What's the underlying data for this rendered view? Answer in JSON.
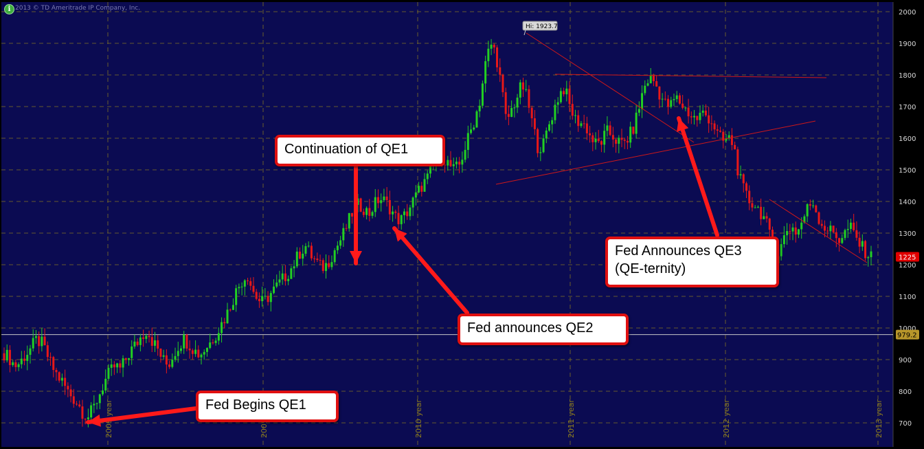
{
  "copyright": "2013 © TD Ameritrade IP Company, Inc.",
  "info_icon": "info-icon",
  "colors": {
    "background": "#0b0b52",
    "grid": "#8a7a20",
    "axis_panel": "#000000",
    "up_candle": "#22d022",
    "down_candle": "#e81818",
    "trendline": "#d01818",
    "callout_border": "#e01010",
    "last_price_badge": "#e00000",
    "level_badge": "#b8962a"
  },
  "chart_data": {
    "type": "candlestick",
    "title": "",
    "ylim": [
      660,
      2020
    ],
    "y_ticks": [
      700,
      800,
      900,
      1000,
      1100,
      1200,
      1300,
      1400,
      1500,
      1600,
      1700,
      1800,
      1900,
      2000
    ],
    "x_year_labels": [
      "2009 year",
      "2009",
      "2010 year",
      "2011 year",
      "2012 year",
      "2013 year"
    ],
    "high_label": "Hi: 1923.7",
    "high_value": 1923.7,
    "last_price": "1225",
    "horizontal_level": 979.2,
    "horizontal_level_label": "979.2",
    "approx_closes": [
      920,
      905,
      880,
      890,
      915,
      935,
      960,
      955,
      920,
      880,
      850,
      830,
      800,
      780,
      760,
      730,
      720,
      750,
      790,
      830,
      860,
      880,
      870,
      900,
      930,
      950,
      975,
      995,
      960,
      935,
      900,
      880,
      915,
      945,
      965,
      950,
      930,
      915,
      935,
      955,
      980,
      1010,
      1040,
      1080,
      1120,
      1150,
      1170,
      1120,
      1090,
      1080,
      1100,
      1120,
      1140,
      1160,
      1180,
      1210,
      1240,
      1260,
      1230,
      1210,
      1190,
      1200,
      1230,
      1260,
      1290,
      1330,
      1370,
      1390,
      1380,
      1360,
      1390,
      1410,
      1400,
      1380,
      1350,
      1340,
      1360,
      1390,
      1420,
      1450,
      1470,
      1510,
      1530,
      1540,
      1520,
      1500,
      1510,
      1560,
      1610,
      1660,
      1720,
      1830,
      1900,
      1870,
      1770,
      1650,
      1690,
      1730,
      1770,
      1720,
      1640,
      1570,
      1580,
      1640,
      1690,
      1740,
      1760,
      1700,
      1660,
      1650,
      1640,
      1600,
      1580,
      1590,
      1620,
      1610,
      1590,
      1580,
      1600,
      1630,
      1690,
      1760,
      1790,
      1780,
      1740,
      1710,
      1700,
      1730,
      1710,
      1690,
      1670,
      1660,
      1680,
      1670,
      1650,
      1610,
      1590,
      1600,
      1580,
      1480,
      1430,
      1400,
      1390,
      1370,
      1340,
      1280,
      1220,
      1260,
      1310,
      1320,
      1300,
      1340,
      1380,
      1400,
      1350,
      1320,
      1310,
      1300,
      1280,
      1300,
      1320,
      1290,
      1260,
      1240,
      1225
    ],
    "trendlines": [
      {
        "from": {
          "x": "2011 Sep",
          "y": 1923.7
        },
        "to": {
          "x": "2012 Oct",
          "y": 1590
        }
      },
      {
        "from": {
          "x": "2011 Aug",
          "y": 1800
        },
        "to": {
          "x": "2013 Mar",
          "y": 1795
        }
      },
      {
        "from": {
          "x": "2011 Jul",
          "y": 1455
        },
        "to": {
          "x": "2013 Mar",
          "y": 1655
        }
      },
      {
        "from": {
          "x": "2012 Nov",
          "y": 1575
        },
        "to": {
          "x": "2013 Jun",
          "y": 1200
        }
      }
    ]
  },
  "annotations": [
    {
      "label": "Continuation of QE1"
    },
    {
      "label": "Fed announces QE2"
    },
    {
      "label": "Fed Announces QE3\n(QE-ternity)"
    },
    {
      "label": "Fed Begins QE1"
    }
  ]
}
